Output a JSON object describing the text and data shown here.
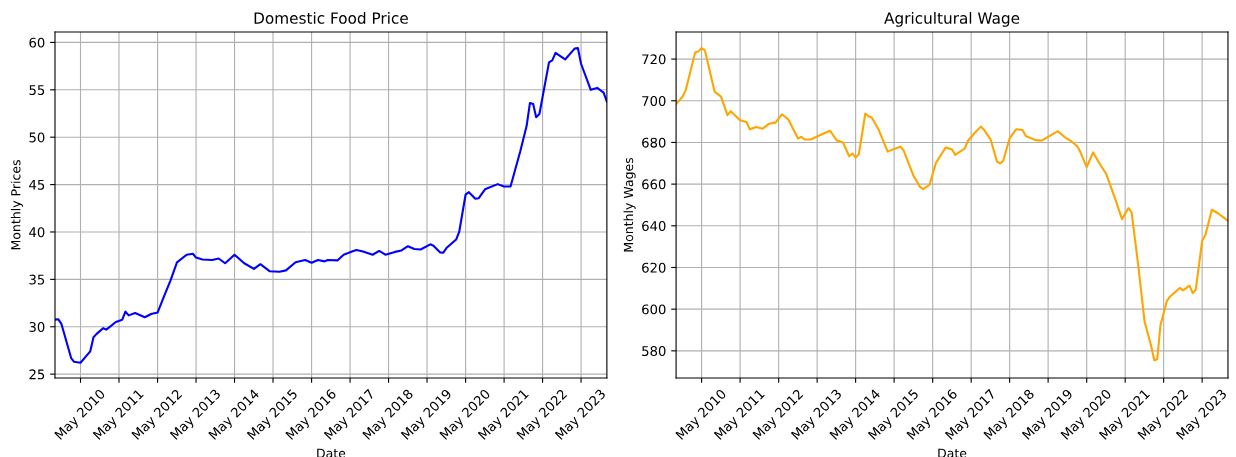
{
  "chart_data": [
    {
      "type": "line",
      "title": "Domestic Food Price",
      "xlabel": "Date",
      "ylabel": "Monthly Prices",
      "x": [
        "2009-09",
        "2009-10",
        "2009-11",
        "2010-02",
        "2010-03",
        "2010-05",
        "2010-08",
        "2010-09",
        "2010-10",
        "2010-12",
        "2011-01",
        "2011-04",
        "2011-06",
        "2011-07",
        "2011-08",
        "2011-10",
        "2012-01",
        "2012-03",
        "2012-05",
        "2012-07",
        "2012-09",
        "2012-11",
        "2013-02",
        "2013-04",
        "2013-05",
        "2013-07",
        "2013-10",
        "2013-12",
        "2014-02",
        "2014-05",
        "2014-08",
        "2014-11",
        "2015-01",
        "2015-04",
        "2015-07",
        "2015-09",
        "2015-12",
        "2016-03",
        "2016-05",
        "2016-07",
        "2016-09",
        "2016-10",
        "2017-01",
        "2017-03",
        "2017-06",
        "2017-07",
        "2017-09",
        "2017-12",
        "2018-02",
        "2018-04",
        "2018-07",
        "2018-09",
        "2018-11",
        "2019-01",
        "2019-03",
        "2019-06",
        "2019-07",
        "2019-09",
        "2019-10",
        "2019-11",
        "2020-02",
        "2020-03",
        "2020-05",
        "2020-06",
        "2020-08",
        "2020-09",
        "2020-11",
        "2021-03",
        "2021-05",
        "2021-07",
        "2021-10",
        "2021-12",
        "2022-01",
        "2022-02",
        "2022-03",
        "2022-04",
        "2022-07",
        "2022-08",
        "2022-09",
        "2022-12",
        "2023-03",
        "2023-04",
        "2023-05",
        "2023-08",
        "2023-10",
        "2023-12",
        "2024-01"
      ],
      "series": [
        {
          "color": "#0000ff",
          "values": [
            30.75,
            30.8,
            30.3,
            26.7,
            26.3,
            26.2,
            27.4,
            28.9,
            29.25,
            29.85,
            29.7,
            30.5,
            30.75,
            31.6,
            31.2,
            31.45,
            31.0,
            31.35,
            31.5,
            33.2,
            34.9,
            36.8,
            37.6,
            37.7,
            37.3,
            37.1,
            37.05,
            37.2,
            36.7,
            37.6,
            36.7,
            36.1,
            36.6,
            35.85,
            35.8,
            35.95,
            36.8,
            37.05,
            36.75,
            37.05,
            36.9,
            37.05,
            37.0,
            37.6,
            38.0,
            38.1,
            37.95,
            37.6,
            38.0,
            37.6,
            37.9,
            38.05,
            38.5,
            38.2,
            38.15,
            38.7,
            38.55,
            37.85,
            37.8,
            38.3,
            39.2,
            40.0,
            43.95,
            44.2,
            43.5,
            43.55,
            44.5,
            45.05,
            44.8,
            44.8,
            48.5,
            51.2,
            53.6,
            53.5,
            52.1,
            52.45,
            57.9,
            58.1,
            58.9,
            58.2,
            59.35,
            59.4,
            57.75,
            55.0,
            55.2,
            54.7,
            53.75
          ]
        }
      ],
      "xlim": [
        "2009-09",
        "2024-01"
      ],
      "xticks": [
        {
          "value": "2010-05",
          "label": "May 2010"
        },
        {
          "value": "2011-05",
          "label": "May 2011"
        },
        {
          "value": "2012-05",
          "label": "May 2012"
        },
        {
          "value": "2013-05",
          "label": "May 2013"
        },
        {
          "value": "2014-05",
          "label": "May 2014"
        },
        {
          "value": "2015-05",
          "label": "May 2015"
        },
        {
          "value": "2016-05",
          "label": "May 2016"
        },
        {
          "value": "2017-05",
          "label": "May 2017"
        },
        {
          "value": "2018-05",
          "label": "May 2018"
        },
        {
          "value": "2019-05",
          "label": "May 2019"
        },
        {
          "value": "2020-05",
          "label": "May 2020"
        },
        {
          "value": "2021-05",
          "label": "May 2021"
        },
        {
          "value": "2022-05",
          "label": "May 2022"
        },
        {
          "value": "2023-05",
          "label": "May 2023"
        }
      ],
      "ylim": [
        24.6,
        61.1
      ],
      "yticks": [
        25,
        30,
        35,
        40,
        45,
        50,
        55,
        60
      ],
      "grid": true
    },
    {
      "type": "line",
      "title": "Agricultural Wage",
      "xlabel": "Date",
      "ylabel": "Monthly Wages",
      "x": [
        "2009-09",
        "2009-11",
        "2009-12",
        "2010-03",
        "2010-04",
        "2010-05",
        "2010-06",
        "2010-09",
        "2010-11",
        "2011-01",
        "2011-02",
        "2011-05",
        "2011-07",
        "2011-08",
        "2011-10",
        "2011-12",
        "2012-02",
        "2012-04",
        "2012-06",
        "2012-08",
        "2012-11",
        "2012-12",
        "2013-01",
        "2013-03",
        "2013-07",
        "2013-09",
        "2013-11",
        "2014-01",
        "2014-03",
        "2014-04",
        "2014-05",
        "2014-06",
        "2014-08",
        "2014-09",
        "2014-10",
        "2014-12",
        "2015-03",
        "2015-05",
        "2015-07",
        "2015-08",
        "2015-11",
        "2016-01",
        "2016-02",
        "2016-04",
        "2016-06",
        "2016-09",
        "2016-11",
        "2016-12",
        "2017-03",
        "2017-04",
        "2017-06",
        "2017-08",
        "2017-09",
        "2017-11",
        "2018-01",
        "2018-02",
        "2018-03",
        "2018-05",
        "2018-07",
        "2018-09",
        "2018-10",
        "2019-01",
        "2019-03",
        "2019-06",
        "2019-08",
        "2019-10",
        "2019-12",
        "2020-02",
        "2020-03",
        "2020-05",
        "2020-07",
        "2020-09",
        "2020-11",
        "2021-02",
        "2021-04",
        "2021-06",
        "2021-07",
        "2021-09",
        "2021-11",
        "2022-01",
        "2022-02",
        "2022-03",
        "2022-04",
        "2022-06",
        "2022-07",
        "2022-10",
        "2022-11",
        "2023-01",
        "2023-02",
        "2023-03",
        "2023-05",
        "2023-06",
        "2023-08",
        "2023-10",
        "2024-01"
      ],
      "series": [
        {
          "color": "#ffa500",
          "values": [
            698.4,
            701.9,
            705,
            723.2,
            723.7,
            725.3,
            724.2,
            704.4,
            702,
            693.1,
            695,
            690.6,
            689.8,
            686.3,
            687.4,
            686.6,
            689,
            689.5,
            693.5,
            691,
            681.9,
            682.7,
            681.4,
            681.4,
            684.3,
            685.6,
            681.1,
            680,
            673.4,
            674.7,
            672.7,
            674.4,
            693.9,
            692.6,
            692,
            686.6,
            675.6,
            676.9,
            678,
            675.9,
            664,
            658.7,
            657.6,
            659.7,
            670.2,
            677.6,
            676.6,
            674,
            677.1,
            680.8,
            684.4,
            687.6,
            686,
            681.5,
            670.8,
            669.9,
            671.2,
            682,
            686.3,
            686,
            683.1,
            681.1,
            680.9,
            683.6,
            685.4,
            682.7,
            680.8,
            678.2,
            675.5,
            668.2,
            675.2,
            669.8,
            665,
            652.1,
            643.2,
            648.5,
            646.4,
            621.4,
            594,
            582.7,
            575.5,
            576,
            592.4,
            604,
            606.1,
            610.2,
            609,
            611.3,
            607.7,
            609.3,
            632.7,
            635.6,
            647.7,
            645.9,
            642.4
          ]
        }
      ],
      "xlim": [
        "2009-09",
        "2024-01"
      ],
      "xticks": [
        {
          "value": "2010-05",
          "label": "May 2010"
        },
        {
          "value": "2011-05",
          "label": "May 2011"
        },
        {
          "value": "2012-05",
          "label": "May 2012"
        },
        {
          "value": "2013-05",
          "label": "May 2013"
        },
        {
          "value": "2014-05",
          "label": "May 2014"
        },
        {
          "value": "2015-05",
          "label": "May 2015"
        },
        {
          "value": "2016-05",
          "label": "May 2016"
        },
        {
          "value": "2017-05",
          "label": "May 2017"
        },
        {
          "value": "2018-05",
          "label": "May 2018"
        },
        {
          "value": "2019-05",
          "label": "May 2019"
        },
        {
          "value": "2020-05",
          "label": "May 2020"
        },
        {
          "value": "2021-05",
          "label": "May 2021"
        },
        {
          "value": "2022-05",
          "label": "May 2022"
        },
        {
          "value": "2023-05",
          "label": "May 2023"
        }
      ],
      "ylim": [
        567,
        733
      ],
      "yticks": [
        580,
        600,
        620,
        640,
        660,
        680,
        700,
        720
      ],
      "grid": true
    }
  ]
}
